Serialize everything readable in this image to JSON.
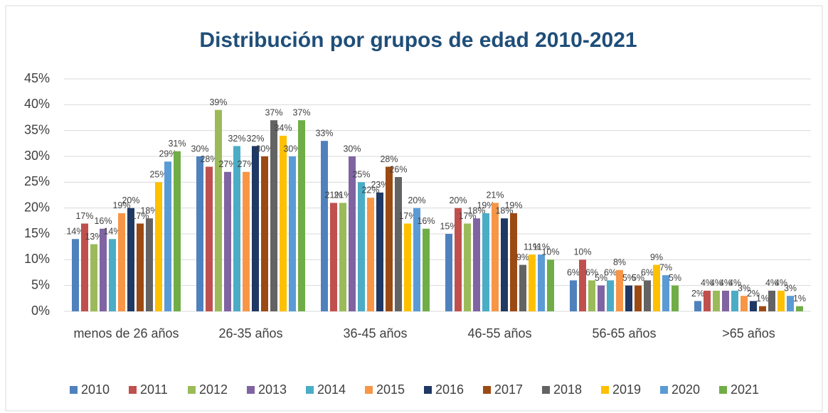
{
  "chart_data": {
    "type": "bar",
    "title": "Distribución por grupos de edad 2010-2021",
    "categories": [
      "menos de 26 años",
      "26-35 años",
      "36-45 años",
      "46-55 años",
      "56-65 años",
      ">65 años"
    ],
    "ylim": [
      0,
      45
    ],
    "yticks": [
      {
        "value": 0,
        "label": "0%"
      },
      {
        "value": 5,
        "label": "5%"
      },
      {
        "value": 10,
        "label": "10%"
      },
      {
        "value": 15,
        "label": "15%"
      },
      {
        "value": 20,
        "label": "20%"
      },
      {
        "value": 25,
        "label": "25%"
      },
      {
        "value": 30,
        "label": "30%"
      },
      {
        "value": 35,
        "label": "35%"
      },
      {
        "value": 40,
        "label": "40%"
      },
      {
        "value": 45,
        "label": "45%"
      }
    ],
    "grid": true,
    "legend": "bottom",
    "series": [
      {
        "name": "2010",
        "color": "#4f81bd",
        "values": [
          14,
          30,
          33,
          15,
          6,
          2
        ],
        "value_labels": [
          "14%",
          "30%",
          "33%",
          "15%",
          "6%",
          "2%"
        ]
      },
      {
        "name": "2011",
        "color": "#c0504d",
        "values": [
          17,
          28,
          21,
          20,
          10,
          4
        ],
        "value_labels": [
          "17%",
          "28%",
          "21%",
          "20%",
          "10%",
          "4%"
        ]
      },
      {
        "name": "2012",
        "color": "#9bbb59",
        "values": [
          13,
          39,
          21,
          17,
          6,
          4
        ],
        "value_labels": [
          "13%",
          "39%",
          "21%",
          "17%",
          "6%",
          "4%"
        ]
      },
      {
        "name": "2013",
        "color": "#8064a2",
        "values": [
          16,
          27,
          30,
          18,
          5,
          4
        ],
        "value_labels": [
          "16%",
          "27%",
          "30%",
          "18%",
          "5%",
          "4%"
        ]
      },
      {
        "name": "2014",
        "color": "#4bacc6",
        "values": [
          14,
          32,
          25,
          19,
          6,
          4
        ],
        "value_labels": [
          "14%",
          "32%",
          "25%",
          "19%",
          "6%",
          "4%"
        ]
      },
      {
        "name": "2015",
        "color": "#f79646",
        "values": [
          19,
          27,
          22,
          21,
          8,
          3
        ],
        "value_labels": [
          "19%",
          "27%",
          "22%",
          "21%",
          "8%",
          "3%"
        ]
      },
      {
        "name": "2016",
        "color": "#1f3864",
        "values": [
          20,
          32,
          23,
          18,
          5,
          2
        ],
        "value_labels": [
          "20%",
          "32%",
          "23%",
          "18%",
          "5%",
          "2%"
        ]
      },
      {
        "name": "2017",
        "color": "#9c4a13",
        "values": [
          17,
          30,
          28,
          19,
          5,
          1
        ],
        "value_labels": [
          "17%",
          "30%",
          "28%",
          "19%",
          "5%",
          "1%"
        ]
      },
      {
        "name": "2018",
        "color": "#636363",
        "values": [
          18,
          37,
          26,
          9,
          6,
          4
        ],
        "value_labels": [
          "18%",
          "37%",
          "26%",
          "9%",
          "6%",
          "4%"
        ]
      },
      {
        "name": "2019",
        "color": "#ffc000",
        "values": [
          25,
          34,
          17,
          11,
          9,
          4
        ],
        "value_labels": [
          "25%",
          "34%",
          "17%",
          "11%",
          "9%",
          "4%"
        ]
      },
      {
        "name": "2020",
        "color": "#5b9bd5",
        "values": [
          29,
          30,
          20,
          11,
          7,
          3
        ],
        "value_labels": [
          "29%",
          "30%",
          "20%",
          "11%",
          "7%",
          "3%"
        ]
      },
      {
        "name": "2021",
        "color": "#70ad47",
        "values": [
          31,
          37,
          16,
          10,
          5,
          1
        ],
        "value_labels": [
          "31%",
          "37%",
          "16%",
          "10%",
          "5%",
          "1%"
        ]
      }
    ]
  }
}
